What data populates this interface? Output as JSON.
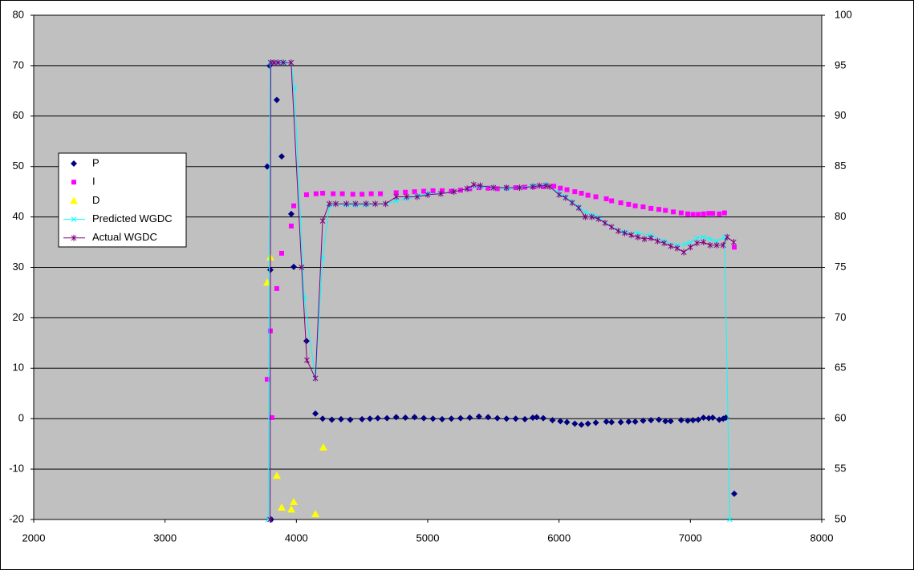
{
  "chart_data": {
    "type": "scatter",
    "xlim": [
      2000,
      8000
    ],
    "xticks": [
      2000,
      3000,
      4000,
      5000,
      6000,
      7000,
      8000
    ],
    "ylim": [
      -20,
      80
    ],
    "yticks": [
      -20,
      -10,
      0,
      10,
      20,
      30,
      40,
      50,
      60,
      70,
      80
    ],
    "y2lim": [
      50,
      100
    ],
    "y2ticks": [
      50,
      55,
      60,
      65,
      70,
      75,
      80,
      85,
      90,
      95,
      100
    ],
    "grid": true,
    "legend": "left",
    "series": [
      {
        "name": "P",
        "color": "#000080",
        "marker": "diamond",
        "x": [
          3778,
          3796,
          3802,
          3808,
          3851,
          3888,
          3961,
          3980,
          4077,
          4145,
          4200,
          4270,
          4340,
          4410,
          4500,
          4560,
          4620,
          4690,
          4760,
          4830,
          4900,
          4970,
          5040,
          5110,
          5180,
          5250,
          5320,
          5390,
          5460,
          5530,
          5600,
          5670,
          5740,
          5800,
          5830,
          5880,
          5950,
          6010,
          6060,
          6120,
          6170,
          6220,
          6280,
          6360,
          6400,
          6470,
          6530,
          6580,
          6640,
          6700,
          6760,
          6810,
          6850,
          6930,
          6980,
          7020,
          7060,
          7100,
          7140,
          7170,
          7220,
          7250,
          7270,
          7334
        ],
        "values": [
          50,
          70,
          29.5,
          -20,
          63.2,
          52,
          40.6,
          30.1,
          15.4,
          1,
          0,
          -0.2,
          -0.1,
          -0.2,
          -0.1,
          0,
          0.1,
          0.1,
          0.3,
          0.2,
          0.3,
          0.1,
          0,
          -0.1,
          0,
          0.1,
          0.2,
          0.4,
          0.3,
          0.1,
          0,
          0,
          -0.1,
          0.2,
          0.3,
          0.1,
          -0.3,
          -0.5,
          -0.7,
          -1,
          -1.2,
          -1,
          -0.8,
          -0.6,
          -0.7,
          -0.7,
          -0.6,
          -0.6,
          -0.4,
          -0.3,
          -0.2,
          -0.5,
          -0.5,
          -0.3,
          -0.4,
          -0.3,
          -0.2,
          0.2,
          0.1,
          0.2,
          -0.2,
          0,
          0.2,
          -14.9
        ]
      },
      {
        "name": "I",
        "color": "#ff00ff",
        "marker": "square",
        "x": [
          3778,
          3802,
          3814,
          3851,
          3888,
          3961,
          3980,
          4077,
          4150,
          4200,
          4280,
          4350,
          4430,
          4500,
          4570,
          4640,
          4760,
          4830,
          4900,
          4970,
          5040,
          5110,
          5180,
          5250,
          5320,
          5390,
          5460,
          5530,
          5600,
          5670,
          5740,
          5810,
          5880,
          5960,
          6010,
          6060,
          6120,
          6170,
          6220,
          6280,
          6360,
          6400,
          6470,
          6530,
          6580,
          6640,
          6700,
          6760,
          6810,
          6870,
          6930,
          6980,
          7020,
          7060,
          7100,
          7140,
          7170,
          7220,
          7260,
          7334
        ],
        "values": [
          7.8,
          17.4,
          0.2,
          25.8,
          32.8,
          38.2,
          42.2,
          44.4,
          44.6,
          44.7,
          44.6,
          44.6,
          44.5,
          44.5,
          44.6,
          44.6,
          44.8,
          44.9,
          45,
          45.1,
          45.2,
          45.2,
          45.1,
          45.3,
          45.6,
          45.8,
          45.7,
          45.6,
          45.7,
          45.8,
          45.9,
          46,
          46,
          46.1,
          45.7,
          45.4,
          45,
          44.7,
          44.3,
          44,
          43.6,
          43.2,
          42.8,
          42.5,
          42.2,
          42,
          41.7,
          41.5,
          41.3,
          41,
          40.8,
          40.6,
          40.5,
          40.5,
          40.6,
          40.7,
          40.7,
          40.6,
          40.8,
          34
        ]
      },
      {
        "name": "D",
        "color": "#ffff00",
        "marker": "triangle",
        "x": [
          3778,
          3802,
          3851,
          3888,
          3961,
          3980,
          4145,
          4205
        ],
        "values": [
          27,
          32,
          -11.3,
          -17.6,
          -18,
          -16.5,
          -18.9,
          -5.7
        ]
      },
      {
        "name": "Predicted WGDC",
        "color": "#00ffff",
        "marker": "x",
        "line": true,
        "axis": "y2",
        "x": [
          3785,
          3800,
          3830,
          3870,
          3910,
          3960,
          3985,
          4060,
          4145,
          4200,
          4250,
          4300,
          4380,
          4450,
          4530,
          4600,
          4680,
          4760,
          4840,
          4920,
          5000,
          5100,
          5200,
          5300,
          5400,
          5500,
          5600,
          5700,
          5800,
          5900,
          6000,
          6050,
          6100,
          6150,
          6200,
          6250,
          6300,
          6400,
          6500,
          6600,
          6700,
          6800,
          6900,
          6960,
          7000,
          7050,
          7100,
          7150,
          7200,
          7260,
          7300
        ],
        "values": [
          50,
          95.3,
          95.3,
          95.3,
          95.3,
          95.3,
          92.8,
          72,
          64,
          75.9,
          81.1,
          81.3,
          81.2,
          81.2,
          81.2,
          81.3,
          81.3,
          81.6,
          81.8,
          82.1,
          82.3,
          82.3,
          82.5,
          82.8,
          83,
          82.9,
          82.8,
          82.9,
          83.1,
          83.2,
          82.4,
          82,
          81.5,
          81,
          80.5,
          80.2,
          80,
          79,
          78.5,
          78.4,
          78.2,
          77.6,
          77.2,
          77.3,
          77.5,
          77.9,
          78,
          77.8,
          77.6,
          78,
          50
        ]
      },
      {
        "name": "Actual WGDC",
        "color": "#800080",
        "marker": "star",
        "line": true,
        "axis": "y2",
        "x": [
          3800,
          3805,
          3830,
          3860,
          3900,
          3960,
          4040,
          4080,
          4145,
          4200,
          4250,
          4300,
          4380,
          4450,
          4530,
          4600,
          4680,
          4760,
          4840,
          4920,
          5000,
          5100,
          5200,
          5300,
          5350,
          5400,
          5500,
          5600,
          5700,
          5800,
          5850,
          5900,
          5930,
          6000,
          6050,
          6100,
          6150,
          6200,
          6250,
          6300,
          6350,
          6400,
          6450,
          6500,
          6550,
          6600,
          6650,
          6700,
          6750,
          6800,
          6850,
          6900,
          6950,
          7000,
          7050,
          7100,
          7150,
          7200,
          7250,
          7280,
          7330
        ],
        "values": [
          50,
          95.3,
          95.3,
          95.3,
          95.3,
          95.3,
          75,
          65.8,
          64,
          79.6,
          81.3,
          81.3,
          81.3,
          81.3,
          81.3,
          81.3,
          81.3,
          82,
          82,
          82,
          82.2,
          82.3,
          82.5,
          82.8,
          83.2,
          83.1,
          82.9,
          82.9,
          82.9,
          83,
          83.1,
          83.1,
          83,
          82.2,
          81.9,
          81.4,
          80.9,
          80,
          80,
          79.8,
          79.4,
          79,
          78.6,
          78.4,
          78.2,
          78,
          77.8,
          77.9,
          77.6,
          77.4,
          77.1,
          76.9,
          76.5,
          77,
          77.4,
          77.5,
          77.2,
          77.2,
          77.2,
          78,
          77.5
        ]
      }
    ]
  }
}
